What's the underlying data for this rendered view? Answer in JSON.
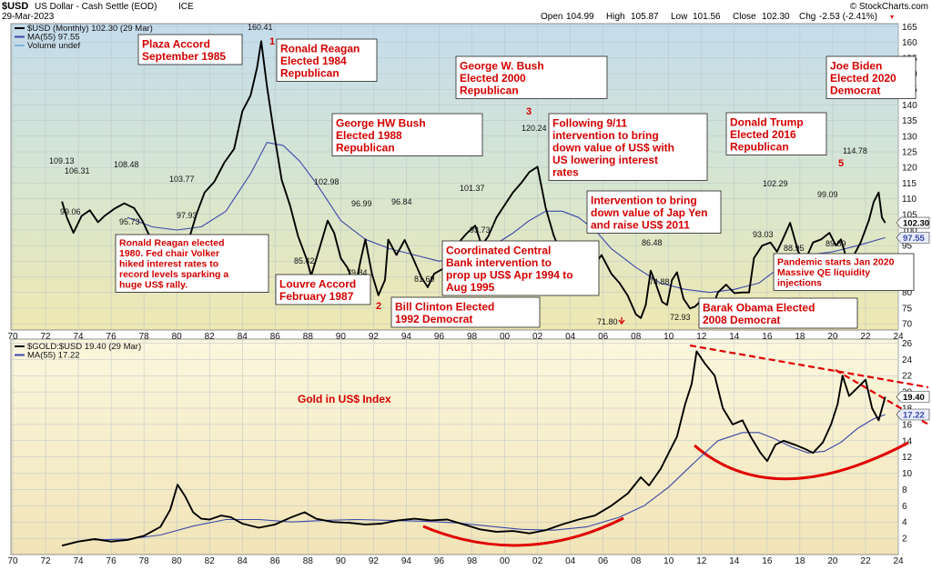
{
  "header": {
    "symbol": "$USD",
    "name": "US Dollar - Cash Settle (EOD)",
    "exchange": "ICE",
    "date": "29-Mar-2023",
    "watermark": "© StockCharts.com",
    "ohlc": {
      "open_label": "Open",
      "open": "104.99",
      "high_label": "High",
      "high": "105.87",
      "low_label": "Low",
      "low": "101.56",
      "close_label": "Close",
      "close": "102.30",
      "chg_label": "Chg",
      "chg": "-2.53 (-2.41%)"
    }
  },
  "colors": {
    "top_panel_bg_top": "#c4dcec",
    "top_panel_bg_bottom": "#efe8b2",
    "bottom_panel_bg_top": "#fbf7de",
    "bottom_panel_bg_bottom": "#f1e4b8",
    "price_line": "#000000",
    "ma_line": "#3b48a8",
    "annotation": "#d40000"
  },
  "chart_data": [
    {
      "type": "line",
      "panel": "top",
      "legend": [
        {
          "label": "$USD (Monthly) 102.30 (29 Mar)",
          "color": "#000000"
        },
        {
          "label": "MA(55) 97.55",
          "color": "#3b48a8"
        },
        {
          "label": "Volume undef",
          "color": "#7fb0d8"
        }
      ],
      "ylim": [
        68,
        166
      ],
      "y_ticks": [
        70,
        75,
        80,
        85,
        90,
        95,
        100,
        105,
        110,
        115,
        120,
        125,
        130,
        135,
        140,
        145,
        150,
        155,
        160,
        165
      ],
      "xlim": [
        1970,
        2024
      ],
      "x_ticks": [
        70,
        72,
        74,
        76,
        78,
        80,
        82,
        84,
        86,
        88,
        90,
        92,
        94,
        96,
        98,
        "00",
        "02",
        "04",
        "06",
        "08",
        10,
        12,
        14,
        16,
        18,
        20,
        22,
        24
      ],
      "series": [
        {
          "name": "$USD",
          "x": [
            1973.0,
            1973.3,
            1973.7,
            1974.2,
            1974.7,
            1975.2,
            1975.6,
            1976.2,
            1976.8,
            1977.4,
            1977.9,
            1978.3,
            1978.8,
            1979.3,
            1979.8,
            1980.3,
            1980.8,
            1981.2,
            1981.7,
            1982.3,
            1982.9,
            1983.5,
            1984.0,
            1984.5,
            1984.9,
            1985.15,
            1985.5,
            1985.9,
            1986.4,
            1986.9,
            1987.4,
            1987.9,
            1988.2,
            1988.7,
            1989.2,
            1989.6,
            1990.0,
            1990.4,
            1990.9,
            1991.2,
            1991.5,
            1991.9,
            1992.3,
            1992.7,
            1992.9,
            1993.4,
            1993.9,
            1994.4,
            1994.9,
            1995.3,
            1995.7,
            1996.2,
            1996.7,
            1997.2,
            1997.7,
            1998.2,
            1998.6,
            1999.0,
            1999.5,
            2000.0,
            2000.5,
            2001.0,
            2001.5,
            2002.0,
            2002.5,
            2003.0,
            2003.5,
            2004.0,
            2004.5,
            2004.9,
            2005.5,
            2005.9,
            2006.5,
            2007.0,
            2007.5,
            2008.0,
            2008.3,
            2008.6,
            2008.9,
            2009.2,
            2009.6,
            2009.9,
            2010.2,
            2010.5,
            2010.9,
            2011.3,
            2011.6,
            2012.0,
            2012.5,
            2013.0,
            2013.5,
            2014.0,
            2014.5,
            2014.9,
            2015.2,
            2015.7,
            2016.2,
            2016.6,
            2016.95,
            2017.4,
            2017.9,
            2018.3,
            2018.8,
            2019.3,
            2019.8,
            2020.2,
            2020.5,
            2020.9,
            2021.3,
            2021.7,
            2022.2,
            2022.5,
            2022.8,
            2023.0,
            2023.2
          ],
          "values": [
            109.1,
            104.0,
            99.1,
            104.5,
            106.3,
            102.5,
            104.5,
            106.8,
            108.5,
            107.0,
            103.0,
            98.5,
            95.7,
            98.0,
            97.9,
            95.5,
            98.0,
            105.0,
            112.0,
            115.5,
            121.5,
            126.0,
            138.0,
            143.0,
            152.0,
            160.4,
            146.0,
            132.0,
            116.0,
            108.0,
            98.0,
            91.0,
            85.4,
            94.0,
            102.98,
            99.0,
            91.0,
            88.0,
            82.0,
            90.0,
            97.0,
            86.0,
            79.1,
            84.0,
            96.9,
            92.0,
            96.8,
            91.0,
            85.0,
            81.7,
            86.0,
            87.5,
            88.0,
            96.0,
            99.0,
            101.37,
            95.0,
            98.0,
            104.0,
            108.0,
            112.0,
            115.0,
            118.5,
            120.24,
            107.0,
            98.0,
            92.0,
            87.5,
            88.5,
            82.0,
            89.0,
            92.0,
            86.0,
            83.0,
            79.0,
            73.0,
            71.8,
            76.0,
            87.0,
            83.0,
            77.0,
            76.0,
            84.0,
            86.48,
            78.0,
            74.88,
            75.5,
            77.5,
            72.93,
            80.0,
            82.5,
            79.8,
            80.0,
            80.0,
            91.0,
            95.0,
            96.0,
            93.03,
            97.0,
            102.29,
            93.0,
            90.0,
            96.0,
            97.0,
            99.09,
            95.0,
            97.0,
            89.89,
            92.0,
            96.0,
            103.0,
            109.0,
            112.0,
            104.0,
            102.3
          ]
        },
        {
          "name": "MA(55)",
          "x": [
            1977.0,
            1978.5,
            1980.0,
            1981.5,
            1983.0,
            1984.5,
            1985.5,
            1986.5,
            1987.5,
            1988.5,
            1990.0,
            1991.5,
            1993.0,
            1994.5,
            1996.0,
            1997.5,
            1999.0,
            2000.5,
            2001.5,
            2002.5,
            2003.5,
            2004.5,
            2005.5,
            2006.5,
            2008.0,
            2009.5,
            2011.0,
            2012.5,
            2014.0,
            2015.5,
            2017.0,
            2018.5,
            2020.0,
            2021.5,
            2023.2
          ],
          "values": [
            104,
            101,
            100,
            101,
            106,
            118,
            128,
            127,
            122,
            115,
            103,
            97,
            94,
            92,
            90,
            91,
            94,
            99,
            103,
            106,
            106,
            104,
            100,
            94,
            88,
            83,
            81,
            80,
            81,
            83,
            89,
            92,
            93,
            95,
            97.55
          ]
        }
      ],
      "peak_labels": [
        "109.13",
        "106.31",
        "99.06",
        "108.48",
        "95.73",
        "97.93",
        "103.77",
        "160.41",
        "85.42",
        "102.98",
        "96.99",
        "79.84",
        "79.12",
        "96.84",
        "81.69",
        "101.37",
        "93.73",
        "120.24",
        "71.80",
        "74.88",
        "86.48",
        "72.93",
        "102.29",
        "93.03",
        "88.95",
        "99.09",
        "89.89",
        "114.78"
      ],
      "annotations": [
        {
          "lines": [
            "Plaza Accord",
            "September 1985"
          ]
        },
        {
          "lines": [
            "Ronald Reagan",
            "Elected 1984",
            "Republican"
          ]
        },
        {
          "lines": [
            "George W. Bush",
            "Elected 2000",
            "Republican"
          ]
        },
        {
          "lines": [
            "Joe Biden",
            "Elected 2020",
            "Democrat"
          ]
        },
        {
          "lines": [
            "George HW Bush",
            "Elected 1988",
            "Republican"
          ]
        },
        {
          "lines": [
            "Following 9/11",
            "intervention to bring",
            "down value of US$ with",
            "US lowering interest",
            "rates"
          ]
        },
        {
          "lines": [
            "Donald Trump",
            "Elected 2016",
            "Republican"
          ]
        },
        {
          "lines": [
            "Intervention to bring",
            "down value of Jap Yen",
            "and raise US$ 2011"
          ]
        },
        {
          "lines": [
            "Ronald Reagan elected",
            "1980. Fed chair Volker",
            "hiked interest rates to",
            "record levels sparking a",
            "huge US$ rally."
          ]
        },
        {
          "lines": [
            "Coordinated Central",
            "Bank intervention to",
            "prop up US$ Apr 1994 to",
            "Aug 1995"
          ]
        },
        {
          "lines": [
            "Louvre Accord",
            "February 1987"
          ]
        },
        {
          "lines": [
            "Bill Clinton Elected",
            "1992 Democrat"
          ]
        },
        {
          "lines": [
            "Barak Obama Elected",
            "2008 Democrat"
          ]
        },
        {
          "lines": [
            "Pandemic starts Jan 2020",
            "Massive QE liquidity",
            "injections"
          ]
        }
      ],
      "peak_numbers": [
        "1",
        "2",
        "3",
        "5"
      ],
      "price_tags": [
        "102.30",
        "97.55"
      ]
    },
    {
      "type": "line",
      "panel": "bottom",
      "legend": [
        {
          "label": "$GOLD:$USD 19.40 (29 Mar)",
          "color": "#000000"
        },
        {
          "label": "MA(55) 17.22",
          "color": "#3b48a8"
        }
      ],
      "title_annotation": "Gold in US$ Index",
      "ylim": [
        0,
        26.5
      ],
      "y_ticks": [
        2,
        4,
        6,
        8,
        10,
        12,
        14,
        16,
        18,
        20,
        22,
        24,
        26
      ],
      "xlim": [
        1970,
        2024
      ],
      "x_ticks": [
        70,
        72,
        74,
        76,
        78,
        80,
        82,
        84,
        86,
        88,
        90,
        92,
        94,
        96,
        98,
        "00",
        "02",
        "04",
        "06",
        "08",
        10,
        12,
        14,
        16,
        18,
        20,
        22,
        24
      ],
      "series": [
        {
          "name": "$GOLD:$USD",
          "x": [
            1973.0,
            1974.0,
            1975.0,
            1976.0,
            1977.0,
            1978.0,
            1979.0,
            1979.6,
            1980.05,
            1980.5,
            1981.0,
            1981.5,
            1982.0,
            1982.7,
            1983.3,
            1984.0,
            1985.0,
            1986.0,
            1987.0,
            1987.8,
            1988.5,
            1989.5,
            1990.5,
            1991.5,
            1992.5,
            1993.5,
            1994.5,
            1995.5,
            1996.5,
            1997.5,
            1998.5,
            1999.5,
            2000.5,
            2001.5,
            2002.5,
            2003.5,
            2004.5,
            2005.5,
            2006.5,
            2007.5,
            2008.3,
            2008.8,
            2009.5,
            2010.0,
            2010.5,
            2011.0,
            2011.4,
            2011.7,
            2012.2,
            2012.8,
            2013.3,
            2013.9,
            2014.5,
            2015.0,
            2015.6,
            2016.0,
            2016.5,
            2017.0,
            2017.7,
            2018.3,
            2018.8,
            2019.4,
            2019.9,
            2020.3,
            2020.6,
            2021.0,
            2021.5,
            2022.0,
            2022.4,
            2022.8,
            2023.2
          ],
          "values": [
            1.1,
            1.6,
            1.9,
            1.6,
            1.8,
            2.3,
            3.4,
            5.5,
            8.6,
            7.2,
            5.2,
            4.4,
            4.3,
            4.8,
            4.6,
            3.8,
            3.3,
            3.7,
            4.6,
            5.2,
            4.4,
            4.0,
            3.9,
            3.7,
            3.8,
            4.2,
            4.4,
            4.2,
            4.3,
            3.7,
            3.1,
            2.8,
            2.9,
            2.6,
            3.0,
            3.7,
            4.3,
            4.8,
            6.0,
            7.5,
            9.5,
            8.5,
            10.5,
            12.5,
            14.5,
            18.5,
            21.0,
            25.0,
            23.5,
            22.0,
            18.0,
            16.0,
            16.5,
            14.5,
            12.5,
            11.5,
            13.5,
            14.0,
            13.5,
            13.0,
            12.5,
            13.8,
            16.0,
            18.5,
            22.0,
            19.5,
            20.5,
            21.5,
            18.0,
            16.5,
            19.4
          ]
        },
        {
          "name": "MA(55)",
          "x": [
            1975.0,
            1977.0,
            1979.0,
            1981.0,
            1983.0,
            1985.0,
            1987.0,
            1989.0,
            1991.0,
            1993.0,
            1995.0,
            1997.0,
            1999.0,
            2001.0,
            2003.0,
            2005.0,
            2007.0,
            2008.5,
            2010.0,
            2011.5,
            2013.0,
            2014.5,
            2015.5,
            2016.5,
            2017.5,
            2018.5,
            2019.5,
            2020.5,
            2021.5,
            2022.5,
            2023.2
          ],
          "values": [
            1.8,
            1.9,
            2.4,
            3.5,
            4.3,
            4.3,
            4.0,
            4.2,
            4.3,
            4.2,
            4.1,
            3.9,
            3.5,
            3.1,
            3.0,
            3.4,
            4.6,
            6.0,
            8.3,
            11.2,
            14.0,
            15.0,
            15.0,
            14.2,
            13.2,
            12.5,
            12.7,
            13.8,
            15.5,
            16.7,
            17.22
          ]
        }
      ],
      "price_tags": [
        "19.40",
        "17.22"
      ]
    }
  ]
}
